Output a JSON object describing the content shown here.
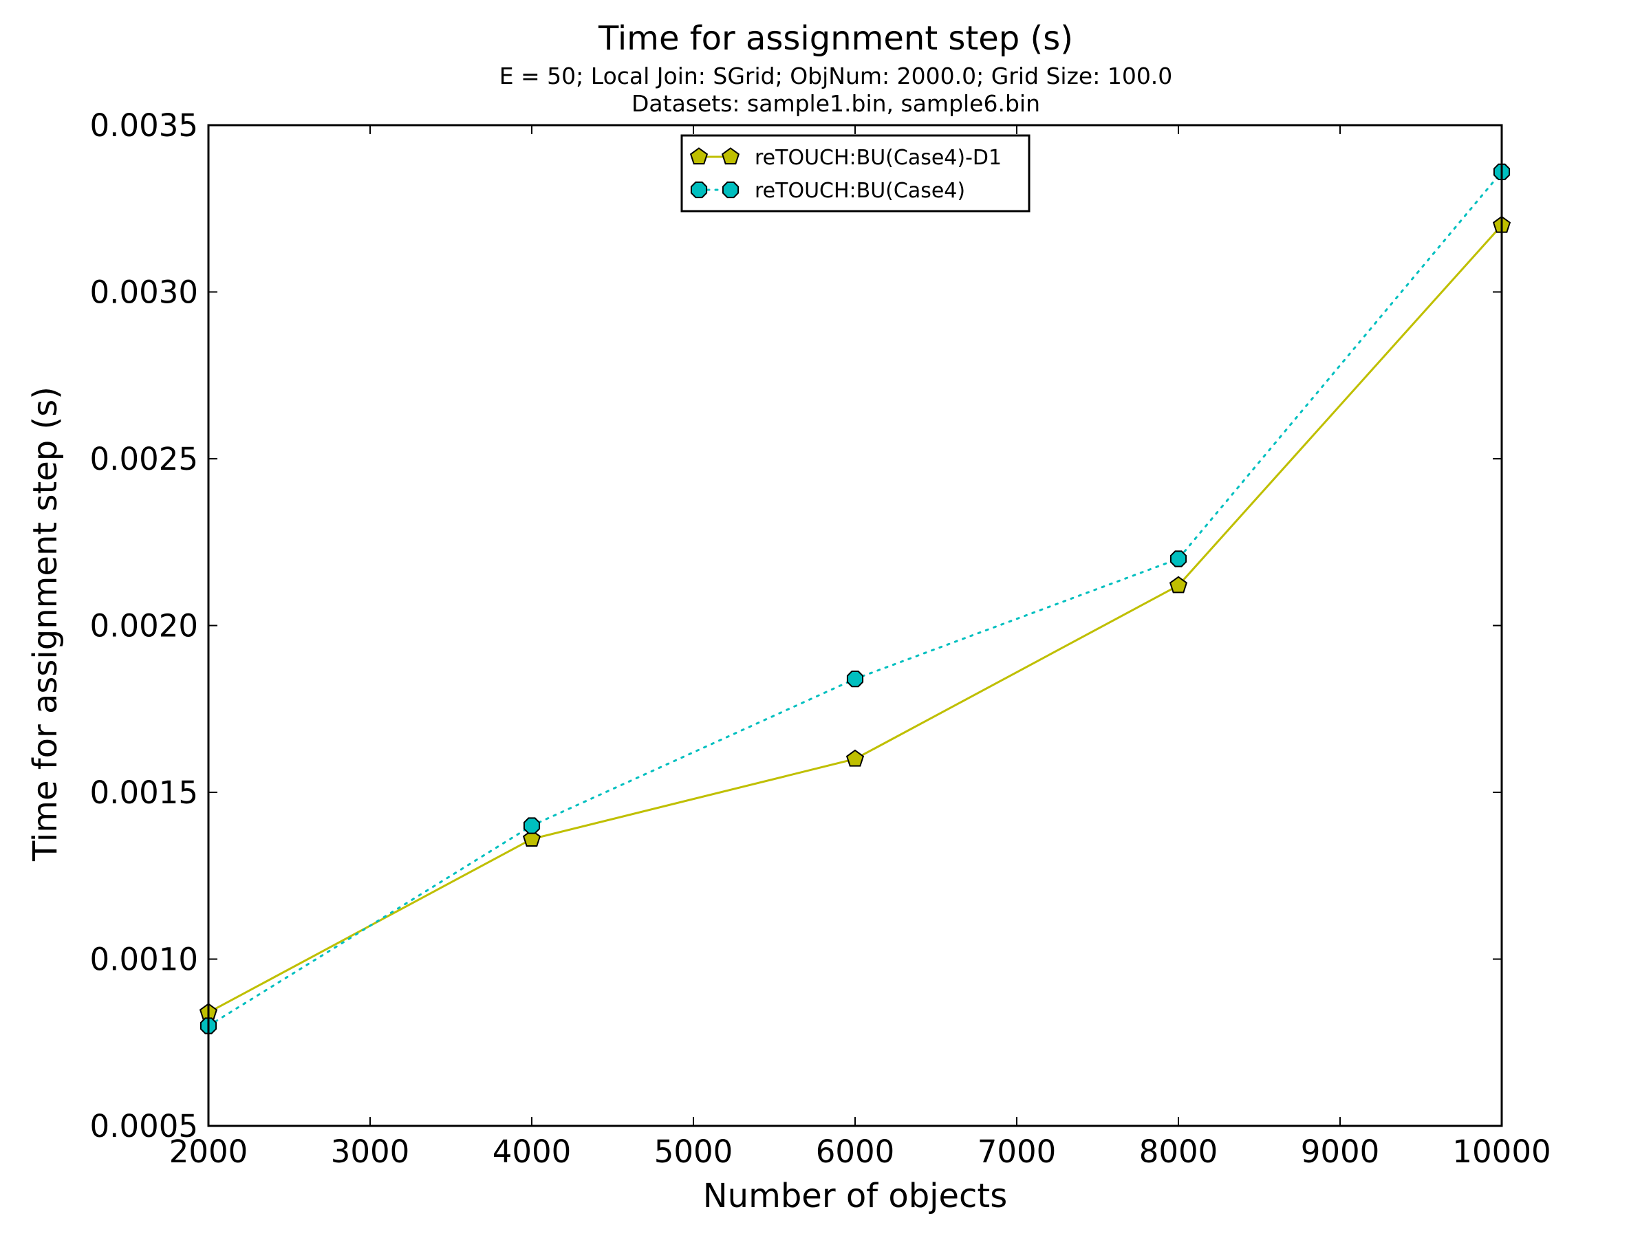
{
  "chart_data": {
    "type": "line",
    "title": "Time for assignment step (s)",
    "subtitle_lines": [
      "E = 50; Local Join: SGrid; ObjNum: 2000.0; Grid Size: 100.0",
      "Datasets: sample1.bin, sample6.bin"
    ],
    "xlabel": "Number of objects",
    "ylabel": "Time for assignment step (s)",
    "xlim": [
      2000,
      10000
    ],
    "ylim": [
      0.0005,
      0.0035
    ],
    "xticks": [
      2000,
      3000,
      4000,
      5000,
      6000,
      7000,
      8000,
      9000,
      10000
    ],
    "xtick_labels": [
      "2000",
      "3000",
      "4000",
      "5000",
      "6000",
      "7000",
      "8000",
      "9000",
      "10000"
    ],
    "yticks": [
      0.0005,
      0.001,
      0.0015,
      0.002,
      0.0025,
      0.003,
      0.0035
    ],
    "ytick_labels": [
      "0.0005",
      "0.0010",
      "0.0015",
      "0.0020",
      "0.0025",
      "0.0030",
      "0.0035"
    ],
    "grid": false,
    "legend_position": "upper-center",
    "x": [
      2000,
      4000,
      6000,
      8000,
      10000
    ],
    "series": [
      {
        "name": "reTOUCH:BU(Case4)-D1",
        "values": [
          0.00084,
          0.00136,
          0.0016,
          0.00212,
          0.0032
        ],
        "color": "#bfbf00",
        "line_style": "solid",
        "marker": "pentagon"
      },
      {
        "name": "reTOUCH:BU(Case4)",
        "values": [
          0.0008,
          0.0014,
          0.00184,
          0.0022,
          0.00336
        ],
        "color": "#00bfbf",
        "line_style": "dotted",
        "marker": "octagon"
      }
    ]
  }
}
